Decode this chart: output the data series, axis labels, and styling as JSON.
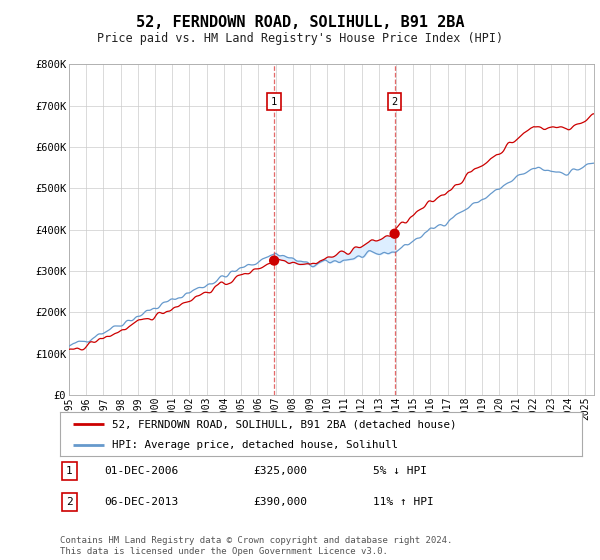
{
  "title": "52, FERNDOWN ROAD, SOLIHULL, B91 2BA",
  "subtitle": "Price paid vs. HM Land Registry's House Price Index (HPI)",
  "ylim": [
    0,
    800000
  ],
  "yticks": [
    0,
    100000,
    200000,
    300000,
    400000,
    500000,
    600000,
    700000,
    800000
  ],
  "ytick_labels": [
    "£0",
    "£100K",
    "£200K",
    "£300K",
    "£400K",
    "£500K",
    "£600K",
    "£700K",
    "£800K"
  ],
  "sale1_date": 2006.917,
  "sale1_price": 325000,
  "sale2_date": 2013.917,
  "sale2_price": 390000,
  "legend_entry1": "52, FERNDOWN ROAD, SOLIHULL, B91 2BA (detached house)",
  "legend_entry2": "HPI: Average price, detached house, Solihull",
  "annotation1_date": "01-DEC-2006",
  "annotation1_price": "£325,000",
  "annotation1_hpi": "5% ↓ HPI",
  "annotation2_date": "06-DEC-2013",
  "annotation2_price": "£390,000",
  "annotation2_hpi": "11% ↑ HPI",
  "footer": "Contains HM Land Registry data © Crown copyright and database right 2024.\nThis data is licensed under the Open Government Licence v3.0.",
  "line_color_red": "#cc0000",
  "line_color_blue": "#6699cc",
  "shaded_color": "#ddeeff",
  "background_color": "#ffffff",
  "grid_color": "#cccccc"
}
